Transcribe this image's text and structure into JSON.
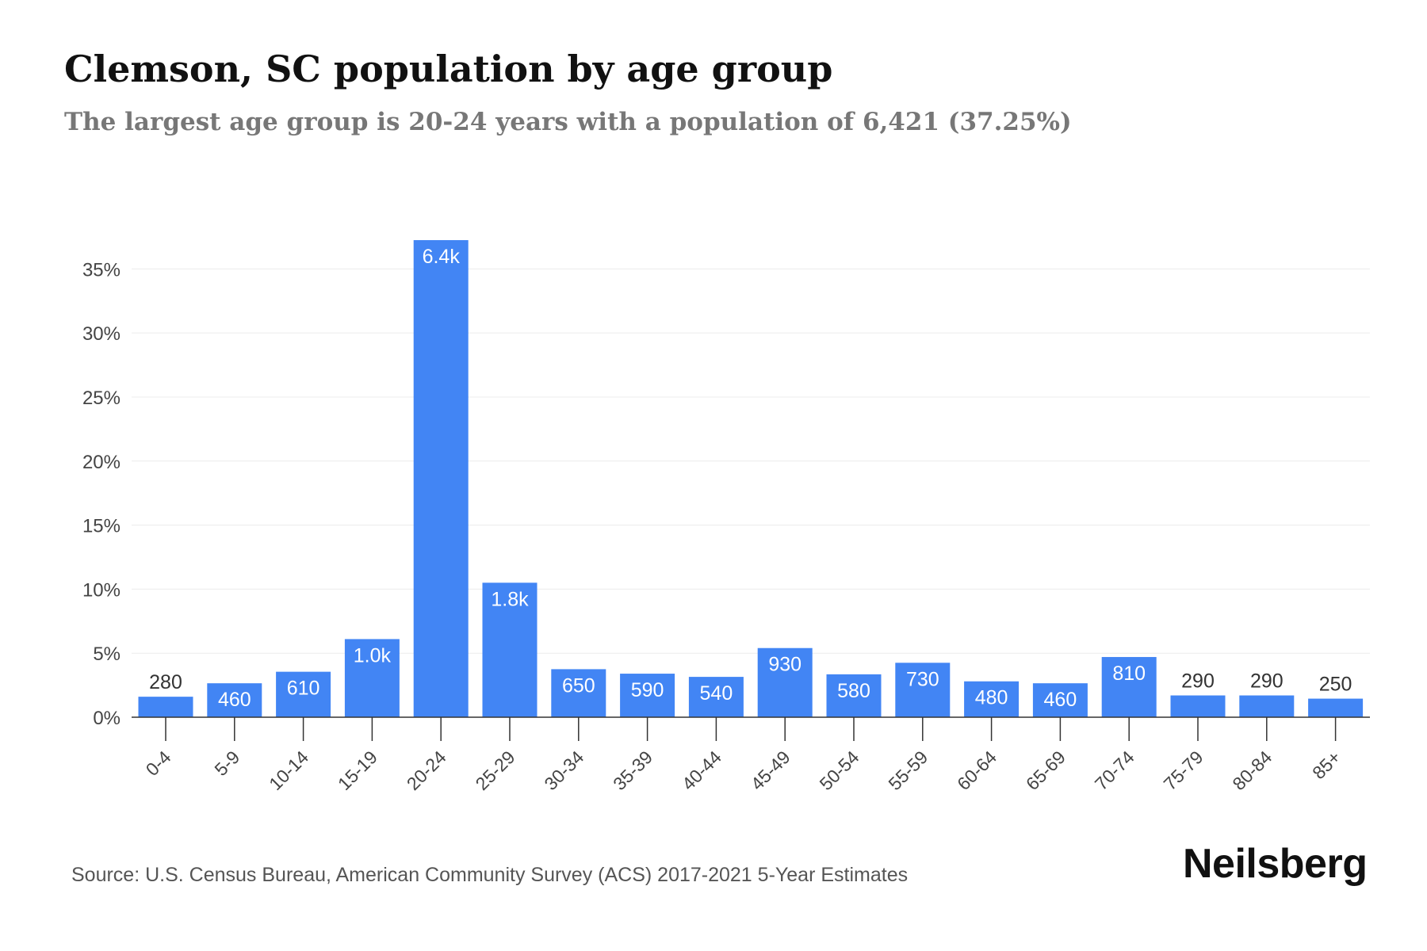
{
  "header": {
    "title": "Clemson, SC population by age group",
    "subtitle": "The largest age group is 20-24 years with a population of 6,421 (37.25%)"
  },
  "footer": {
    "source": "Source: U.S. Census Bureau, American Community Survey (ACS) 2017-2021 5-Year Estimates",
    "logo": "Neilsberg"
  },
  "chart_data": {
    "type": "bar",
    "categories": [
      "0-4",
      "5-9",
      "10-14",
      "15-19",
      "20-24",
      "25-29",
      "30-34",
      "35-39",
      "40-44",
      "45-49",
      "50-54",
      "55-59",
      "60-64",
      "65-69",
      "70-74",
      "75-79",
      "80-84",
      "85+"
    ],
    "values": [
      1.6,
      2.65,
      3.55,
      6.1,
      37.25,
      10.5,
      3.75,
      3.4,
      3.15,
      5.4,
      3.35,
      4.25,
      2.8,
      2.65,
      4.7,
      1.7,
      1.7,
      1.45
    ],
    "data_labels": [
      "280",
      "460",
      "610",
      "1.0k",
      "6.4k",
      "1.8k",
      "650",
      "590",
      "540",
      "930",
      "580",
      "730",
      "480",
      "460",
      "810",
      "290",
      "290",
      "250"
    ],
    "yticks": [
      0,
      5,
      10,
      15,
      20,
      25,
      30,
      35
    ],
    "ytick_labels": [
      "0%",
      "5%",
      "10%",
      "15%",
      "20%",
      "25%",
      "30%",
      "35%"
    ],
    "ylim": [
      0,
      37.25
    ],
    "grid": true,
    "bar_color": "#4285f4"
  }
}
